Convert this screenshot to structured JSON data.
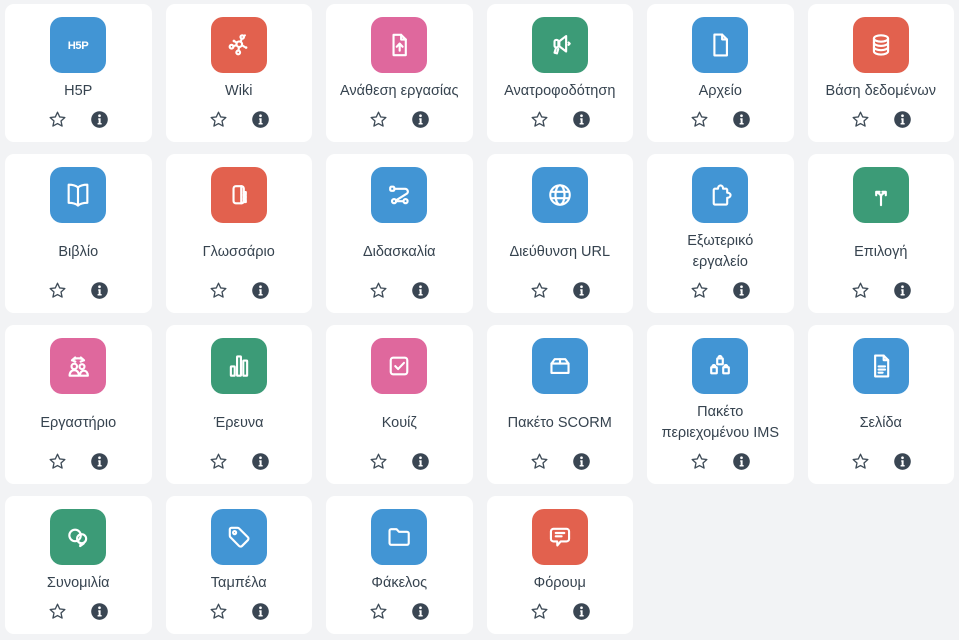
{
  "colors": {
    "blue": "#4295d4",
    "red": "#e2614e",
    "pink": "#df689d",
    "green": "#3c9b77",
    "label_text": "#36434f",
    "star_stroke": "#3f4c58",
    "info_bg": "#3a4653",
    "card_bg": "#ffffff",
    "page_bg": "#f2f3f5"
  },
  "card_actions": {
    "favourite_icon": "star-icon",
    "info_icon": "info-icon"
  },
  "activities": [
    {
      "label": "H5P",
      "icon": "h5p-icon",
      "color": "blue"
    },
    {
      "label": "Wiki",
      "icon": "wiki-icon",
      "color": "red"
    },
    {
      "label": "Ανάθεση εργασίας",
      "icon": "assignment-icon",
      "color": "pink"
    },
    {
      "label": "Ανατροφοδότηση",
      "icon": "feedback-icon",
      "color": "green"
    },
    {
      "label": "Αρχείο",
      "icon": "file-icon",
      "color": "blue"
    },
    {
      "label": "Βάση δεδομένων",
      "icon": "database-icon",
      "color": "red"
    },
    {
      "label": "Βιβλίο",
      "icon": "book-icon",
      "color": "blue"
    },
    {
      "label": "Γλωσσάριο",
      "icon": "glossary-icon",
      "color": "red"
    },
    {
      "label": "Διδασκαλία",
      "icon": "lesson-icon",
      "color": "blue"
    },
    {
      "label": "Διεύθυνση URL",
      "icon": "url-icon",
      "color": "blue"
    },
    {
      "label": "Εξωτερικό\nεργαλείο",
      "icon": "external-tool-icon",
      "color": "blue"
    },
    {
      "label": "Επιλογή",
      "icon": "choice-icon",
      "color": "green"
    },
    {
      "label": "Εργαστήριο",
      "icon": "workshop-icon",
      "color": "pink"
    },
    {
      "label": "Έρευνα",
      "icon": "survey-icon",
      "color": "green"
    },
    {
      "label": "Κουίζ",
      "icon": "quiz-icon",
      "color": "pink"
    },
    {
      "label": "Πακέτο SCORM",
      "icon": "scorm-icon",
      "color": "blue"
    },
    {
      "label": "Πακέτο\nπεριεχομένου IMS",
      "icon": "ims-package-icon",
      "color": "blue"
    },
    {
      "label": "Σελίδα",
      "icon": "page-icon",
      "color": "blue"
    },
    {
      "label": "Συνομιλία",
      "icon": "chat-icon",
      "color": "green"
    },
    {
      "label": "Ταμπέλα",
      "icon": "tag-icon",
      "color": "blue"
    },
    {
      "label": "Φάκελος",
      "icon": "folder-icon",
      "color": "blue"
    },
    {
      "label": "Φόρουμ",
      "icon": "forum-icon",
      "color": "red"
    }
  ]
}
